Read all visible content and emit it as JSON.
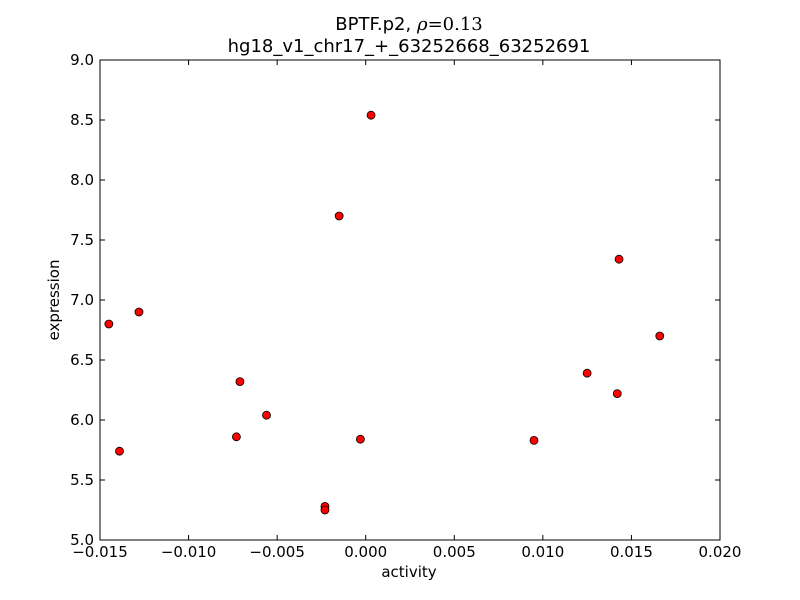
{
  "chart_data": {
    "type": "scatter",
    "title": {
      "gene": "BPTF.p2",
      "rho_symbol": "ρ",
      "rho_value": "=0.13",
      "subtitle": "hg18_v1_chr17_+_63252668_63252691"
    },
    "xlabel": "activity",
    "ylabel": "expression",
    "xlim": [
      -0.015,
      0.02
    ],
    "ylim": [
      5.0,
      9.0
    ],
    "xticks": [
      -0.015,
      -0.01,
      -0.005,
      0.0,
      0.005,
      0.01,
      0.015,
      0.02
    ],
    "xtick_labels": [
      "−0.015",
      "−0.010",
      "−0.005",
      "0.000",
      "0.005",
      "0.010",
      "0.015",
      "0.020"
    ],
    "yticks": [
      5.0,
      5.5,
      6.0,
      6.5,
      7.0,
      7.5,
      8.0,
      8.5,
      9.0
    ],
    "ytick_labels": [
      "5.0",
      "5.5",
      "6.0",
      "6.5",
      "7.0",
      "7.5",
      "8.0",
      "8.5",
      "9.0"
    ],
    "grid": false,
    "marker_color": "#ff0000",
    "marker_edge_color": "#000000",
    "points": [
      {
        "x": -0.0145,
        "y": 6.8
      },
      {
        "x": -0.0128,
        "y": 6.9
      },
      {
        "x": -0.0139,
        "y": 5.74
      },
      {
        "x": -0.0071,
        "y": 6.32
      },
      {
        "x": -0.0073,
        "y": 5.86
      },
      {
        "x": -0.0056,
        "y": 6.04
      },
      {
        "x": -0.0023,
        "y": 5.28
      },
      {
        "x": -0.0023,
        "y": 5.25
      },
      {
        "x": -0.0015,
        "y": 7.7
      },
      {
        "x": -0.0003,
        "y": 5.84
      },
      {
        "x": 0.0003,
        "y": 8.54
      },
      {
        "x": 0.0095,
        "y": 5.83
      },
      {
        "x": 0.0125,
        "y": 6.39
      },
      {
        "x": 0.0142,
        "y": 6.22
      },
      {
        "x": 0.0143,
        "y": 7.34
      },
      {
        "x": 0.0166,
        "y": 6.7
      }
    ]
  }
}
